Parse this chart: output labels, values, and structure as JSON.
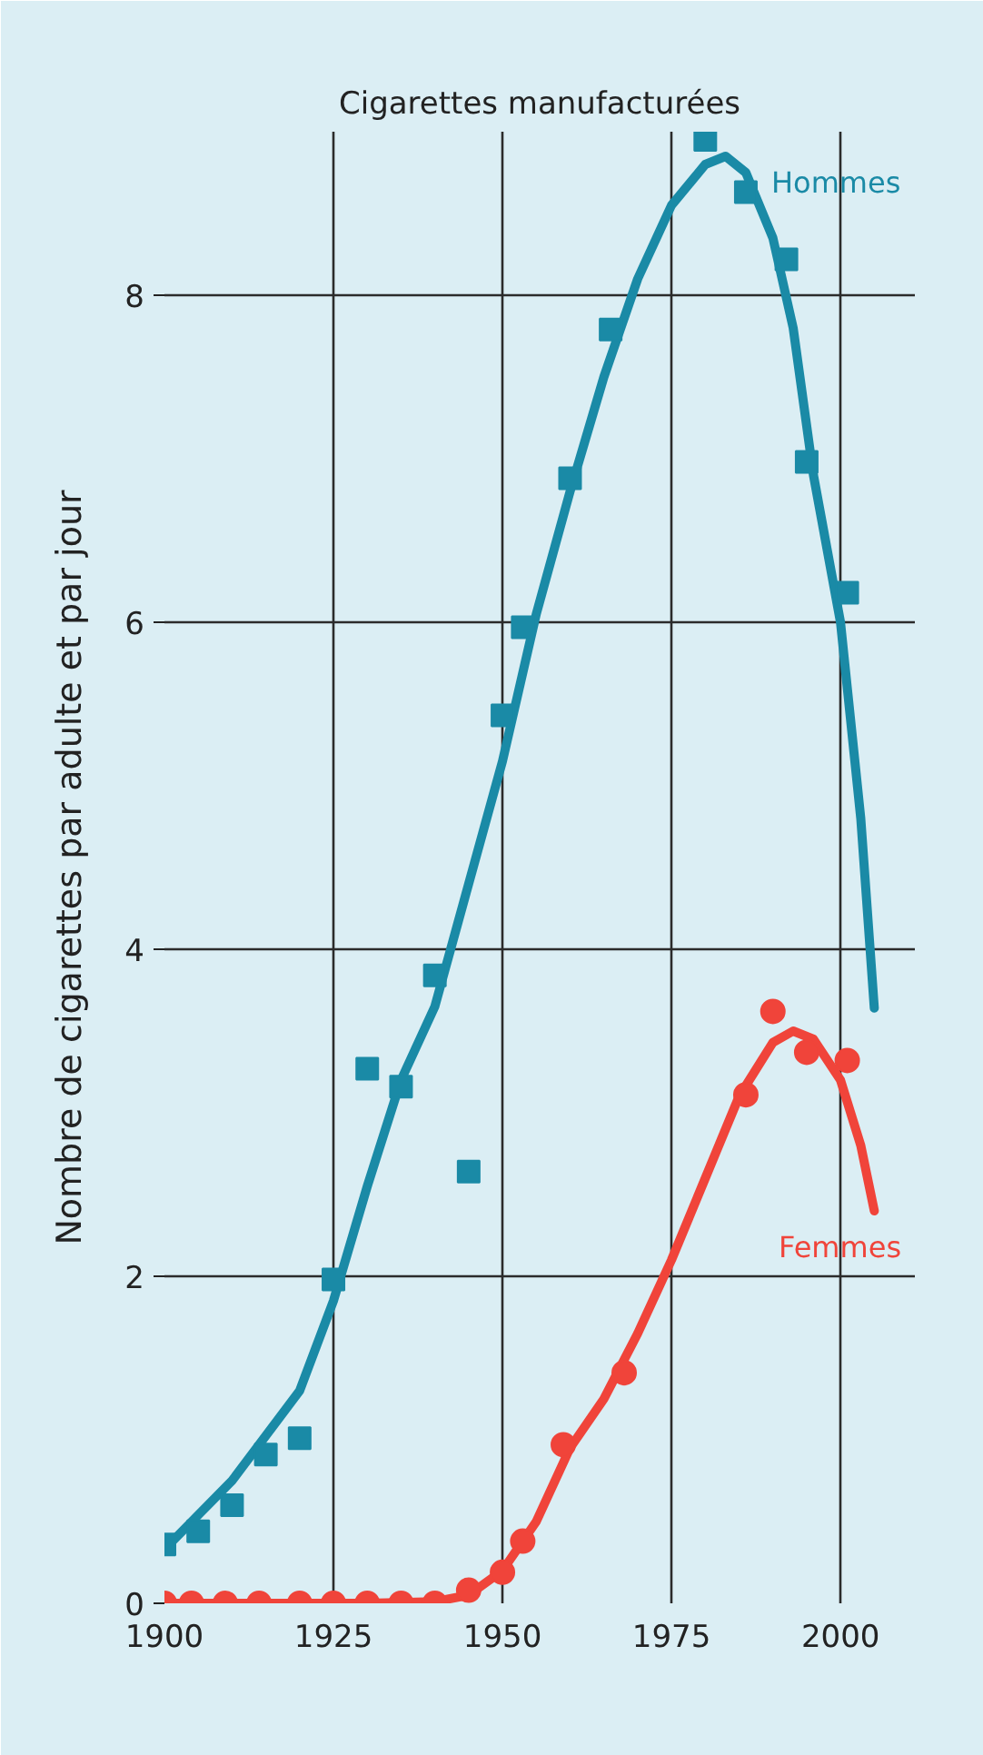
{
  "chart_data": {
    "type": "scatter",
    "title": "Cigarettes manufacturées",
    "ylabel": "Nombre de cigarettes par adulte et par jour",
    "xlim": [
      1900,
      2011
    ],
    "ylim": [
      0,
      9
    ],
    "xticks": [
      1900,
      1925,
      1950,
      1975,
      2000
    ],
    "yticks": [
      0,
      2,
      4,
      6,
      8
    ],
    "grid": true,
    "series": [
      {
        "marker": "square",
        "color": "#1a8aa6",
        "x": [
          1900,
          1905,
          1910,
          1915,
          1920,
          1925,
          1930,
          1935,
          1940,
          1945,
          1950,
          1953,
          1960,
          1966,
          1980,
          1986,
          1992,
          1995,
          2001
        ],
        "values": [
          0.36,
          0.44,
          0.6,
          0.91,
          1.01,
          1.98,
          3.27,
          3.16,
          3.84,
          2.64,
          5.43,
          5.97,
          6.88,
          7.79,
          8.95,
          8.63,
          8.22,
          6.98,
          6.18
        ]
      },
      {
        "type": "line",
        "color": "#1a8aa6",
        "x": [
          1900,
          1910,
          1920,
          1925,
          1930,
          1935,
          1940,
          1945,
          1950,
          1955,
          1960,
          1965,
          1970,
          1975,
          1980,
          1983,
          1986,
          1990,
          1993,
          1996,
          2000,
          2003,
          2005
        ],
        "values": [
          0.33,
          0.75,
          1.3,
          1.85,
          2.55,
          3.2,
          3.65,
          4.4,
          5.15,
          6.05,
          6.8,
          7.5,
          8.1,
          8.55,
          8.8,
          8.85,
          8.75,
          8.35,
          7.8,
          6.9,
          6.0,
          4.8,
          3.64
        ]
      },
      {
        "marker": "circle",
        "color": "#f0443a",
        "x": [
          1900,
          1904,
          1909,
          1914,
          1920,
          1925,
          1930,
          1935,
          1940,
          1945,
          1950,
          1953,
          1959,
          1968,
          1986,
          1990,
          1995,
          2001
        ],
        "values": [
          0,
          0,
          0,
          0,
          0,
          0,
          0,
          0,
          0,
          0.08,
          0.19,
          0.38,
          0.97,
          1.41,
          3.11,
          3.62,
          3.37,
          3.32
        ]
      },
      {
        "type": "line",
        "color": "#f0443a",
        "x": [
          1900,
          1910,
          1920,
          1930,
          1940,
          1945,
          1950,
          1955,
          1960,
          1965,
          1970,
          1975,
          1980,
          1985,
          1990,
          1993,
          1996,
          2000,
          2003,
          2005
        ],
        "values": [
          0,
          0,
          0,
          0,
          0.01,
          0.05,
          0.2,
          0.5,
          0.95,
          1.25,
          1.65,
          2.1,
          2.6,
          3.1,
          3.43,
          3.5,
          3.45,
          3.2,
          2.8,
          2.4
        ]
      }
    ],
    "annotations": [
      "Hommes",
      "Femmes"
    ]
  }
}
